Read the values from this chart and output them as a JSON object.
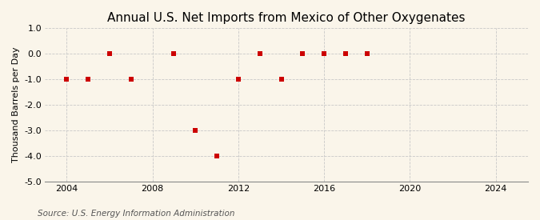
{
  "title": "Annual U.S. Net Imports from Mexico of Other Oxygenates",
  "ylabel": "Thousand Barrels per Day",
  "source": "Source: U.S. Energy Information Administration",
  "background_color": "#faf5ea",
  "years": [
    2004,
    2005,
    2006,
    2007,
    2009,
    2010,
    2011,
    2012,
    2013,
    2014,
    2015,
    2016,
    2017,
    2018
  ],
  "values": [
    -1.0,
    -1.0,
    0.0,
    -1.0,
    0.0,
    -3.0,
    -4.0,
    -1.0,
    0.0,
    -1.0,
    0.0,
    0.0,
    0.0,
    0.0
  ],
  "marker_color": "#cc0000",
  "marker_size": 5,
  "xlim": [
    2003.0,
    2025.5
  ],
  "ylim": [
    -5.0,
    1.0
  ],
  "yticks": [
    1.0,
    0.0,
    -1.0,
    -2.0,
    -3.0,
    -4.0,
    -5.0
  ],
  "xticks": [
    2004,
    2008,
    2012,
    2016,
    2020,
    2024
  ],
  "grid_color": "#c8c8c8",
  "title_fontsize": 11,
  "label_fontsize": 8,
  "tick_fontsize": 8,
  "source_fontsize": 7.5
}
